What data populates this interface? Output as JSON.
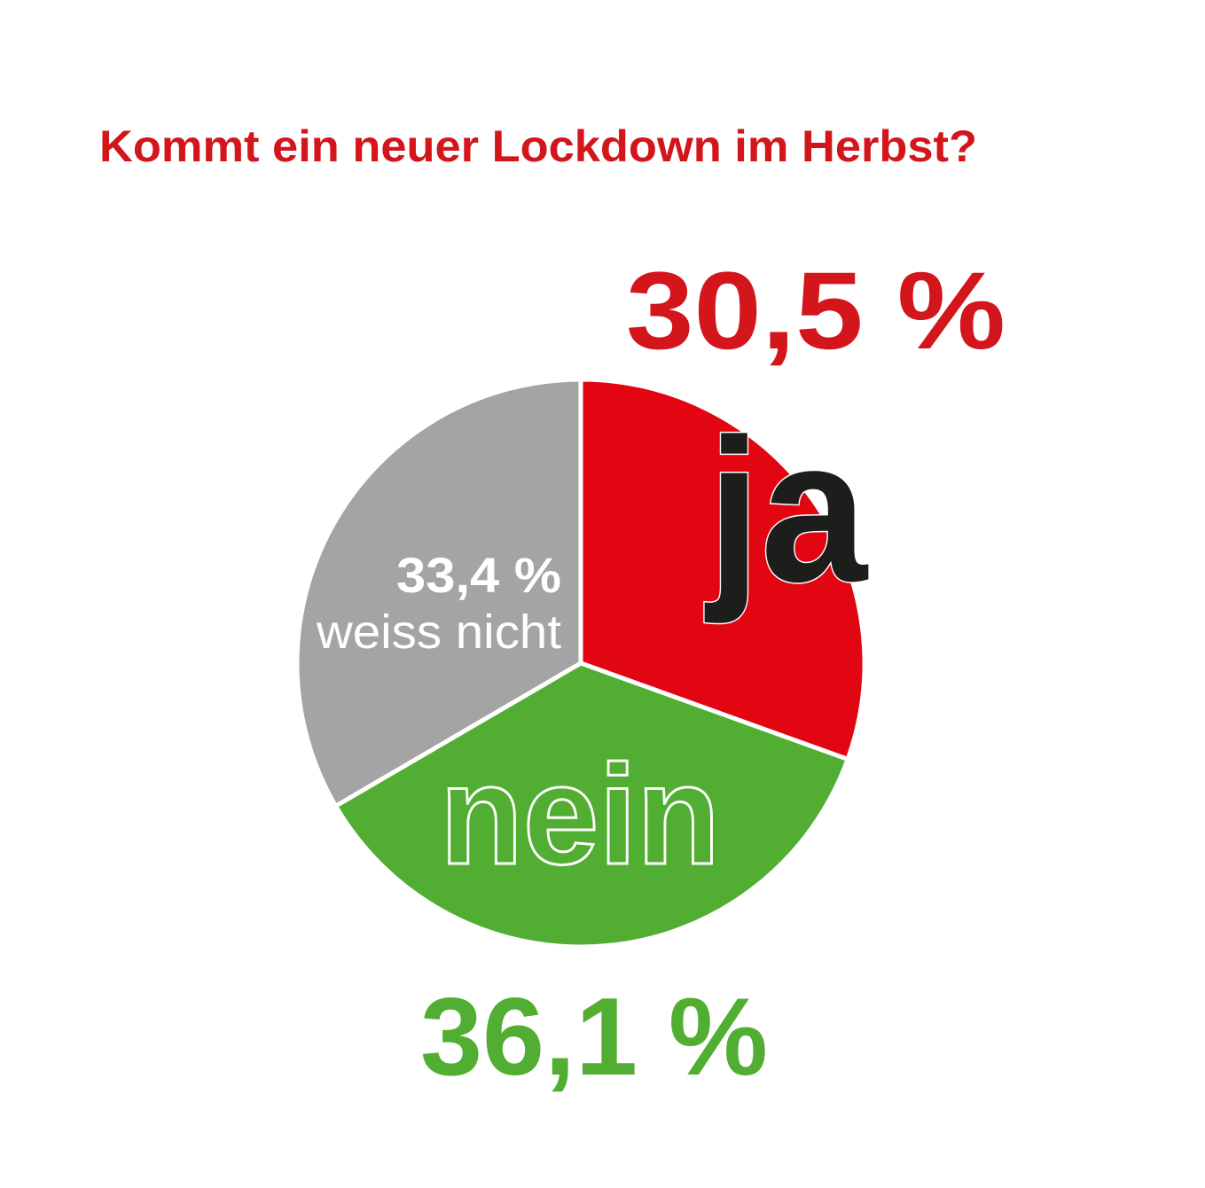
{
  "chart_data": {
    "type": "pie",
    "title": "Kommt ein neuer Lockdown im Herbst?",
    "slices": [
      {
        "label": "ja",
        "value": 30.5,
        "value_label": "30,5 %",
        "color": "#e20613",
        "label_color": "#1d1d1b"
      },
      {
        "label": "nein",
        "value": 36.1,
        "value_label": "36,1 %",
        "color": "#52ae32",
        "label_color": "#52ae32"
      },
      {
        "label": "weiss nicht",
        "value": 33.4,
        "value_label": "33,4 %",
        "color": "#a4a4a4",
        "label_color": "#ffffff"
      }
    ]
  },
  "colors": {
    "title": "#d3151c",
    "ja_value": "#d3151c",
    "nein_value": "#52ae32",
    "separator": "#ffffff"
  }
}
